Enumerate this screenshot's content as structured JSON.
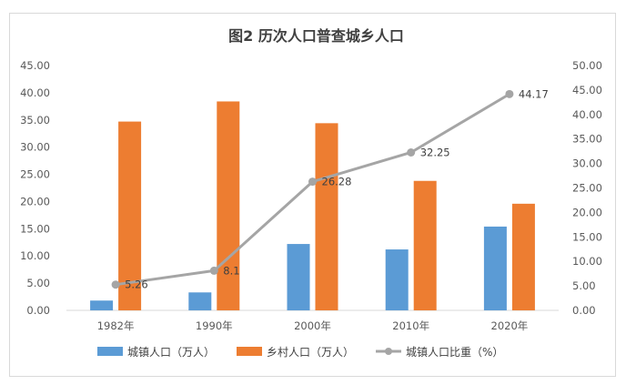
{
  "chart_data": {
    "type": "bar",
    "title": "图2  历次人口普查城乡人口",
    "categories": [
      "1982年",
      "1990年",
      "2000年",
      "2010年",
      "2020年"
    ],
    "series": [
      {
        "name": "城镇人口（万人）",
        "kind": "bar",
        "axis": "left",
        "color": "#5b9bd5",
        "values": [
          1.8,
          3.3,
          12.2,
          11.2,
          15.4
        ]
      },
      {
        "name": "乡村人口（万人）",
        "kind": "bar",
        "axis": "left",
        "color": "#ed7d31",
        "values": [
          34.7,
          38.4,
          34.4,
          23.8,
          19.6
        ]
      },
      {
        "name": "城镇人口比重（%）",
        "kind": "line",
        "axis": "right",
        "color": "#a5a5a5",
        "values": [
          5.26,
          8.1,
          26.28,
          32.25,
          44.17
        ],
        "labels": [
          "5.26",
          "8.1",
          "26.28",
          "32.25",
          "44.17"
        ]
      }
    ],
    "y_left": {
      "min": 0,
      "max": 45,
      "step": 5,
      "tick_labels": [
        "0.00",
        "5.00",
        "10.00",
        "15.00",
        "20.00",
        "25.00",
        "30.00",
        "35.00",
        "40.00",
        "45.00"
      ]
    },
    "y_right": {
      "min": 0,
      "max": 50,
      "step": 5,
      "tick_labels": [
        "0.00",
        "5.00",
        "10.00",
        "15.00",
        "20.00",
        "25.00",
        "30.00",
        "35.00",
        "40.00",
        "45.00",
        "50.00"
      ]
    },
    "grid": false,
    "legend_position": "bottom"
  }
}
